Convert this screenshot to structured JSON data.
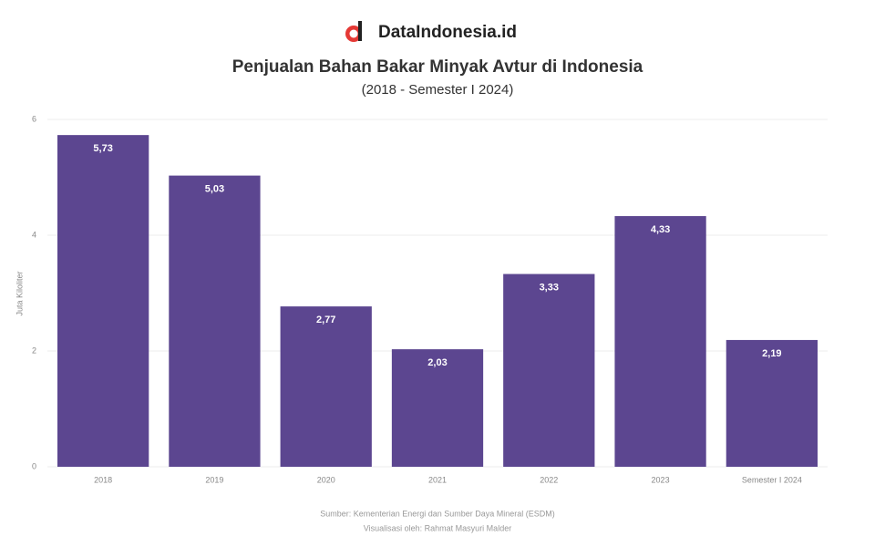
{
  "brand": "DataIndonesia.id",
  "chart_data": {
    "type": "bar",
    "title": "Penjualan Bahan Bakar Minyak Avtur di Indonesia",
    "subtitle": "(2018 - Semester I 2024)",
    "y_axis_label": "Juta Kiloliter",
    "categories": [
      "2018",
      "2019",
      "2020",
      "2021",
      "2022",
      "2023",
      "Semester I 2024"
    ],
    "values": [
      5.73,
      5.03,
      2.77,
      2.03,
      3.33,
      4.33,
      2.19
    ],
    "value_labels": [
      "5,73",
      "5,03",
      "2,77",
      "2,03",
      "3,33",
      "4,33",
      "2,19"
    ],
    "color": "#5c4690",
    "ylim": [
      0,
      6
    ],
    "yticks": [
      0,
      2,
      4,
      6
    ],
    "grid": true,
    "source": "Sumber: Kementerian Energi dan Sumber Daya Mineral (ESDM)",
    "credit": "Visualisasi oleh: Rahmat Masyuri Malder"
  }
}
